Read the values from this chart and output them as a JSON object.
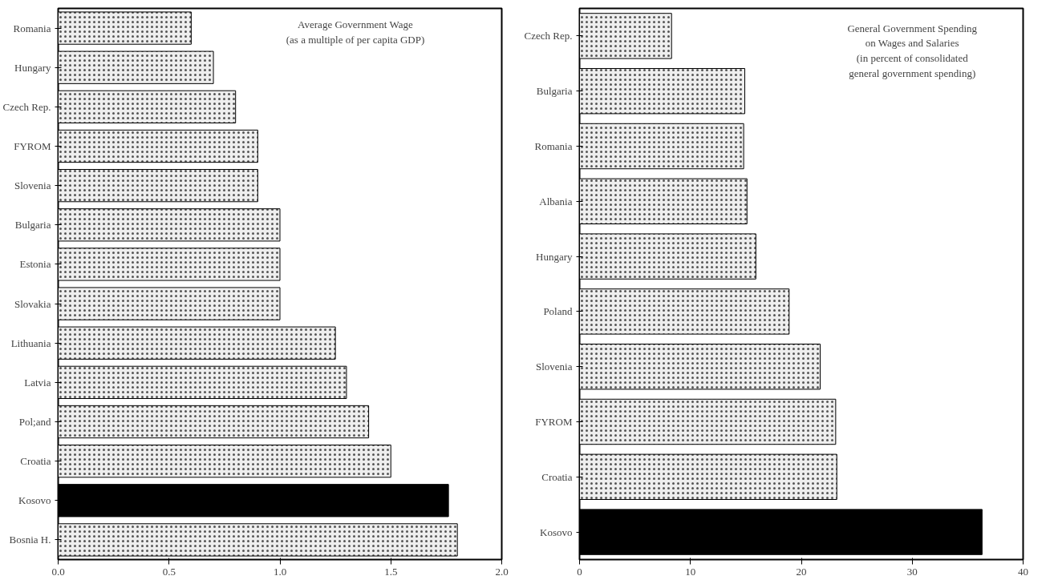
{
  "chart_data": [
    {
      "type": "bar",
      "orientation": "horizontal",
      "title": "Average Government Wage\n(as a multiple of per capita GDP)",
      "categories": [
        "Romania",
        "Hungary",
        "Czech Rep.",
        "FYROM",
        "Slovenia",
        "Bulgaria",
        "Estonia",
        "Slovakia",
        "Lithuania",
        "Latvia",
        "Pol;and",
        "Croatia",
        "Kosovo",
        "Bosnia H."
      ],
      "values": [
        0.6,
        0.7,
        0.8,
        0.9,
        0.9,
        1.0,
        1.0,
        1.0,
        1.25,
        1.3,
        1.4,
        1.5,
        1.76,
        1.8
      ],
      "colors": [
        "#eeeeee",
        "#eeeeee",
        "#eeeeee",
        "#eeeeee",
        "#eeeeee",
        "#eeeeee",
        "#eeeeee",
        "#eeeeee",
        "#eeeeee",
        "#eeeeee",
        "#eeeeee",
        "#eeeeee",
        "#000000",
        "#eeeeee"
      ],
      "xlim": [
        0,
        2
      ],
      "xticks": [
        {
          "value": 0,
          "label": "0.0"
        },
        0.5,
        {
          "value": 1,
          "label": "1.0"
        },
        1.5,
        {
          "value": 2,
          "label": "2.0"
        }
      ]
    },
    {
      "type": "bar",
      "orientation": "horizontal",
      "title": "General Government Spending\non Wages and Salaries\n(in percent of consolidated\ngeneral government spending)",
      "categories": [
        "Czech Rep.",
        "Bulgaria",
        "Romania",
        "Albania",
        "Hungary",
        "Poland",
        "Slovenia",
        "FYROM",
        "Croatia",
        "Kosovo"
      ],
      "values": [
        8.3,
        14.9,
        14.8,
        15.1,
        15.9,
        18.9,
        21.7,
        23.1,
        23.2,
        36.3
      ],
      "colors": [
        "#eeeeee",
        "#eeeeee",
        "#eeeeee",
        "#eeeeee",
        "#eeeeee",
        "#eeeeee",
        "#eeeeee",
        "#eeeeee",
        "#eeeeee",
        "#000000"
      ],
      "xlim": [
        0,
        40
      ],
      "xticks": [
        0,
        10,
        20,
        30,
        40
      ]
    }
  ]
}
